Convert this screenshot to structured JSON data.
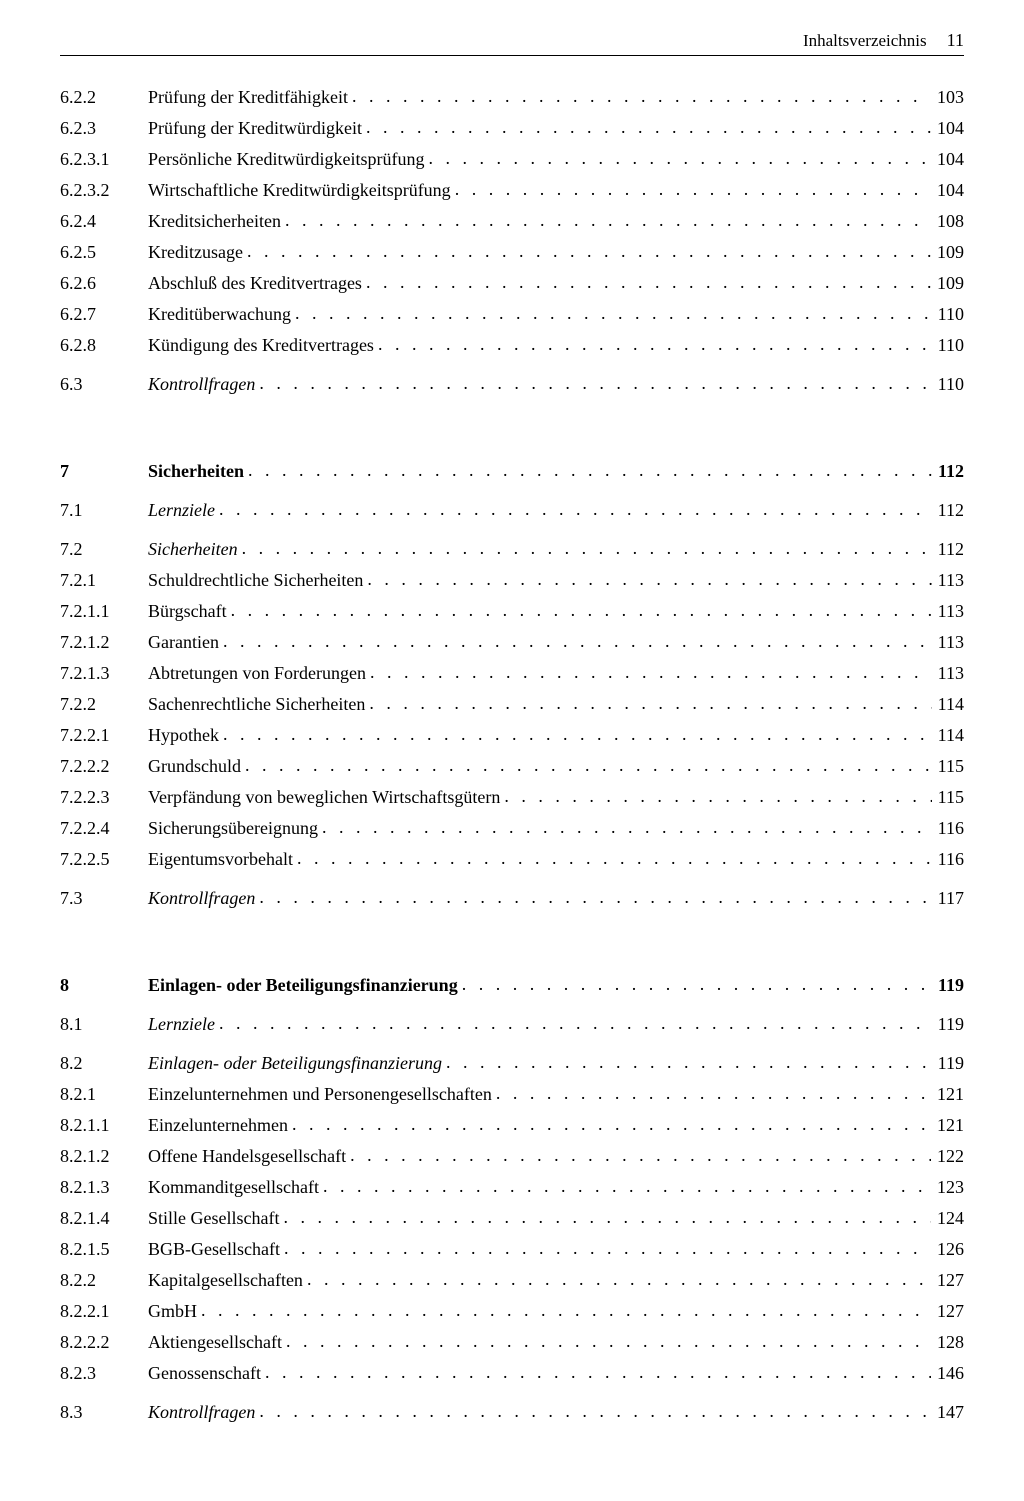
{
  "header": {
    "title": "Inhaltsverzeichnis",
    "page": "11"
  },
  "dots": ". . . . . . . . . . . . . . . . . . . . . . . . . . . . . . . . . . . . . . . . . . . . . . . . . . . . . . . . . . . . . . . . . . . . . . . . . . . . . . . . . . . . . . . . . . . . . . . . . . . . . . . . . . . . . .",
  "groups": [
    {
      "rows": [
        {
          "num": "6.2.2",
          "title": "Prüfung der Kreditfähigkeit",
          "page": "103"
        },
        {
          "num": "6.2.3",
          "title": "Prüfung der Kreditwürdigkeit",
          "page": "104"
        },
        {
          "num": "6.2.3.1",
          "title": "Persönliche Kreditwürdigkeitsprüfung",
          "page": "104"
        },
        {
          "num": "6.2.3.2",
          "title": "Wirtschaftliche Kreditwürdigkeitsprüfung",
          "page": "104"
        },
        {
          "num": "6.2.4",
          "title": "Kreditsicherheiten",
          "page": "108"
        },
        {
          "num": "6.2.5",
          "title": "Kreditzusage",
          "page": "109"
        },
        {
          "num": "6.2.6",
          "title": "Abschluß des Kreditvertrages",
          "page": "109"
        },
        {
          "num": "6.2.7",
          "title": "Kreditüberwachung",
          "page": "110"
        },
        {
          "num": "6.2.8",
          "title": "Kündigung des Kreditvertrages",
          "page": "110"
        },
        {
          "num": "6.3",
          "title": "Kontrollfragen",
          "page": "110",
          "italic": true,
          "gap": true
        }
      ]
    },
    {
      "rows": [
        {
          "num": "7",
          "title": "Sicherheiten",
          "page": "112",
          "bold": true
        },
        {
          "num": "7.1",
          "title": "Lernziele",
          "page": "112",
          "italic": true,
          "gap": true
        },
        {
          "num": "7.2",
          "title": "Sicherheiten",
          "page": "112",
          "italic": true,
          "gap": true
        },
        {
          "num": "7.2.1",
          "title": "Schuldrechtliche Sicherheiten",
          "page": "113"
        },
        {
          "num": "7.2.1.1",
          "title": "Bürgschaft",
          "page": "113"
        },
        {
          "num": "7.2.1.2",
          "title": "Garantien",
          "page": "113"
        },
        {
          "num": "7.2.1.3",
          "title": "Abtretungen von Forderungen",
          "page": "113"
        },
        {
          "num": "7.2.2",
          "title": "Sachenrechtliche Sicherheiten",
          "page": "114"
        },
        {
          "num": "7.2.2.1",
          "title": "Hypothek",
          "page": "114"
        },
        {
          "num": "7.2.2.2",
          "title": "Grundschuld",
          "page": "115"
        },
        {
          "num": "7.2.2.3",
          "title": "Verpfändung von beweglichen Wirtschaftsgütern",
          "page": "115"
        },
        {
          "num": "7.2.2.4",
          "title": "Sicherungsübereignung",
          "page": "116"
        },
        {
          "num": "7.2.2.5",
          "title": "Eigentumsvorbehalt",
          "page": "116"
        },
        {
          "num": "7.3",
          "title": "Kontrollfragen",
          "page": "117",
          "italic": true,
          "gap": true
        }
      ]
    },
    {
      "rows": [
        {
          "num": "8",
          "title": "Einlagen- oder Beteiligungsfinanzierung",
          "page": "119",
          "bold": true
        },
        {
          "num": "8.1",
          "title": "Lernziele",
          "page": "119",
          "italic": true,
          "gap": true
        },
        {
          "num": "8.2",
          "title": "Einlagen- oder Beteiligungsfinanzierung",
          "page": "119",
          "italic": true,
          "gap": true
        },
        {
          "num": "8.2.1",
          "title": "Einzelunternehmen und Personengesellschaften",
          "page": "121"
        },
        {
          "num": "8.2.1.1",
          "title": "Einzelunternehmen",
          "page": "121"
        },
        {
          "num": "8.2.1.2",
          "title": "Offene Handelsgesellschaft",
          "page": "122"
        },
        {
          "num": "8.2.1.3",
          "title": "Kommanditgesellschaft",
          "page": "123"
        },
        {
          "num": "8.2.1.4",
          "title": "Stille Gesellschaft",
          "page": "124"
        },
        {
          "num": "8.2.1.5",
          "title": "BGB-Gesellschaft",
          "page": "126"
        },
        {
          "num": "8.2.2",
          "title": "Kapitalgesellschaften",
          "page": "127"
        },
        {
          "num": "8.2.2.1",
          "title": "GmbH",
          "page": "127"
        },
        {
          "num": "8.2.2.2",
          "title": "Aktiengesellschaft",
          "page": "128"
        },
        {
          "num": "8.2.3",
          "title": "Genossenschaft",
          "page": "146"
        },
        {
          "num": "8.3",
          "title": "Kontrollfragen",
          "page": "147",
          "italic": true,
          "gap": true
        }
      ]
    }
  ]
}
